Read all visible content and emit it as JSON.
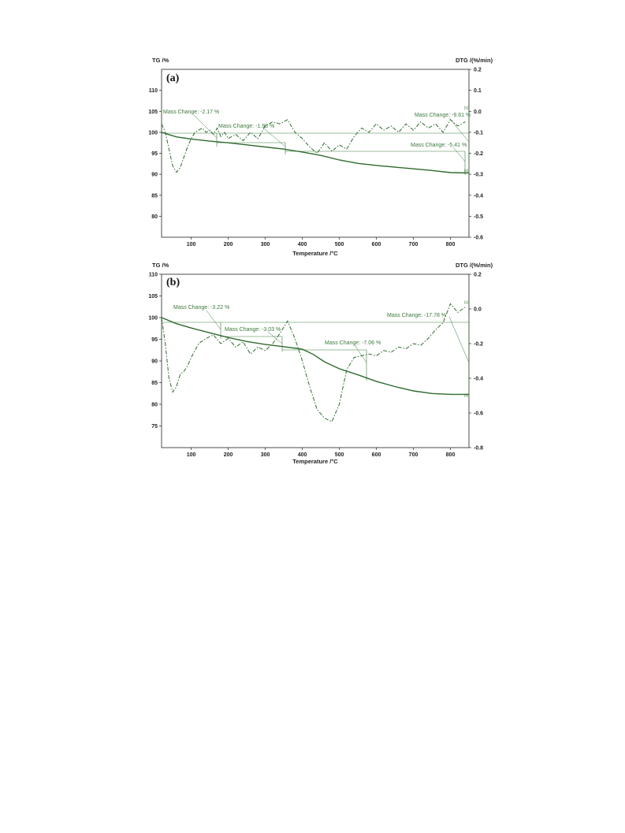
{
  "chart_data": [
    {
      "panel_label": "(a)",
      "type": "line",
      "xlabel": "Temperature /°C",
      "ylabel_left": "TG /%",
      "ylabel_right": "DTG /(%/min)",
      "xlim": [
        20,
        850
      ],
      "ylim_left": [
        75,
        115
      ],
      "ylim_right": [
        -0.6,
        0.2
      ],
      "x_ticks": [
        "100",
        "200",
        "300",
        "400",
        "500",
        "600",
        "700",
        "800"
      ],
      "y_left_ticks": [
        "80",
        "85",
        "90",
        "95",
        "100",
        "105",
        "110"
      ],
      "y_right_ticks": [
        "0.2",
        "0.1",
        "0.0",
        "-0.1",
        "-0.2",
        "-0.3",
        "-0.4",
        "-0.5",
        "-0.6"
      ],
      "series": [
        {
          "axis": "left",
          "style": "solid",
          "x": [
            20,
            60,
            100,
            150,
            200,
            250,
            300,
            350,
            400,
            450,
            500,
            550,
            600,
            650,
            700,
            750,
            800,
            850
          ],
          "y": [
            100.0,
            98.9,
            98.4,
            97.9,
            97.5,
            97.0,
            96.5,
            96.0,
            95.3,
            94.5,
            93.4,
            92.6,
            92.1,
            91.7,
            91.3,
            90.9,
            90.4,
            90.3
          ]
        },
        {
          "axis": "right",
          "style": "dashdot",
          "x": [
            20,
            30,
            40,
            50,
            60,
            70,
            80,
            90,
            100,
            110,
            120,
            130,
            140,
            150,
            160,
            170,
            180,
            190,
            200,
            220,
            240,
            260,
            280,
            300,
            320,
            340,
            360,
            380,
            400,
            420,
            440,
            460,
            480,
            500,
            520,
            540,
            560,
            580,
            600,
            620,
            640,
            660,
            680,
            700,
            720,
            740,
            760,
            780,
            800,
            820,
            840
          ],
          "y": [
            -0.06,
            -0.1,
            -0.18,
            -0.26,
            -0.29,
            -0.27,
            -0.22,
            -0.17,
            -0.13,
            -0.1,
            -0.09,
            -0.08,
            -0.1,
            -0.09,
            -0.11,
            -0.08,
            -0.12,
            -0.1,
            -0.13,
            -0.11,
            -0.14,
            -0.1,
            -0.13,
            -0.07,
            -0.05,
            -0.06,
            -0.04,
            -0.1,
            -0.13,
            -0.17,
            -0.2,
            -0.15,
            -0.19,
            -0.16,
            -0.18,
            -0.12,
            -0.08,
            -0.1,
            -0.06,
            -0.09,
            -0.07,
            -0.1,
            -0.06,
            -0.09,
            -0.05,
            -0.08,
            -0.06,
            -0.1,
            -0.04,
            -0.07,
            -0.05
          ]
        }
      ],
      "annotations": [
        "Mass Change: -2.17 %",
        "Mass Change: -1.98 %",
        "Mass Change: -9.61 %",
        "Mass Change: -5.41 %"
      ],
      "markers": [
        "[1]",
        "[4]"
      ]
    },
    {
      "panel_label": "(b)",
      "type": "line",
      "xlabel": "Temperature /°C",
      "ylabel_left": "TG /%",
      "ylabel_right": "DTG /(%/min)",
      "xlim": [
        20,
        850
      ],
      "ylim_left": [
        70,
        110
      ],
      "ylim_right": [
        -0.8,
        0.2
      ],
      "x_ticks": [
        "100",
        "200",
        "300",
        "400",
        "500",
        "600",
        "700",
        "800"
      ],
      "y_left_ticks": [
        "75",
        "80",
        "85",
        "90",
        "95",
        "100",
        "105",
        "110"
      ],
      "y_right_ticks": [
        "0.2",
        "0.0",
        "-0.2",
        "-0.4",
        "-0.6",
        "-0.8"
      ],
      "series": [
        {
          "axis": "left",
          "style": "solid",
          "x": [
            20,
            60,
            100,
            150,
            200,
            250,
            300,
            350,
            400,
            430,
            460,
            500,
            550,
            600,
            650,
            700,
            750,
            800,
            850
          ],
          "y": [
            100.0,
            98.6,
            97.6,
            96.5,
            95.4,
            94.5,
            93.8,
            93.3,
            92.7,
            91.5,
            89.8,
            88.2,
            86.8,
            85.3,
            84.1,
            83.1,
            82.5,
            82.3,
            82.3
          ]
        },
        {
          "axis": "right",
          "style": "dashdot",
          "x": [
            20,
            30,
            40,
            50,
            60,
            70,
            80,
            90,
            100,
            120,
            140,
            160,
            180,
            200,
            220,
            240,
            260,
            280,
            300,
            320,
            340,
            360,
            380,
            400,
            420,
            440,
            460,
            480,
            500,
            520,
            540,
            560,
            580,
            600,
            620,
            640,
            660,
            680,
            700,
            720,
            740,
            760,
            780,
            800,
            820,
            840
          ],
          "y": [
            -0.05,
            -0.2,
            -0.4,
            -0.48,
            -0.45,
            -0.38,
            -0.36,
            -0.33,
            -0.28,
            -0.2,
            -0.17,
            -0.15,
            -0.2,
            -0.17,
            -0.22,
            -0.19,
            -0.26,
            -0.22,
            -0.24,
            -0.2,
            -0.14,
            -0.07,
            -0.17,
            -0.3,
            -0.45,
            -0.58,
            -0.63,
            -0.65,
            -0.55,
            -0.35,
            -0.28,
            -0.27,
            -0.26,
            -0.27,
            -0.24,
            -0.25,
            -0.22,
            -0.23,
            -0.2,
            -0.21,
            -0.17,
            -0.12,
            -0.08,
            0.03,
            -0.02,
            0.01
          ]
        }
      ],
      "annotations": [
        "Mass Change: -3.22 %",
        "Mass Change: -3.03 %",
        "Mass Change: -7.06 %",
        "Mass Change: -17.78 %"
      ],
      "markers": [
        "[1]",
        "[4]"
      ]
    }
  ],
  "colors": {
    "curve": "#2e6b2e",
    "annotation": "#3a7a3a",
    "axis": "#222222"
  }
}
